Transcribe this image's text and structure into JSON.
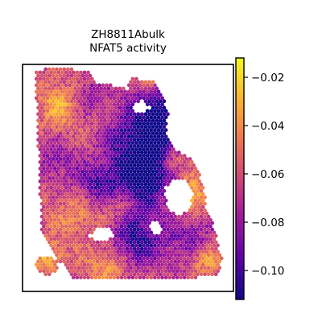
{
  "chart_data": {
    "type": "heatmap",
    "title": [
      "ZH8811Abulk",
      "NFAT5 activity"
    ],
    "xlabel": "",
    "ylabel": "",
    "colormap": "plasma",
    "colormap_stops": [
      "#0d0887",
      "#5c01a6",
      "#9c179e",
      "#cc4778",
      "#ed7953",
      "#fdb42f",
      "#f0f921"
    ],
    "colorbar": {
      "range": [
        -0.112,
        -0.012
      ],
      "ticks": [
        -0.02,
        -0.04,
        -0.06,
        -0.08,
        -0.1
      ],
      "tick_labels": [
        "−0.02",
        "−0.04",
        "−0.06",
        "−0.08",
        "−0.10"
      ]
    },
    "spot_value_range": [
      -0.112,
      -0.012
    ],
    "grid": false,
    "marker": "hexagonal spots"
  }
}
